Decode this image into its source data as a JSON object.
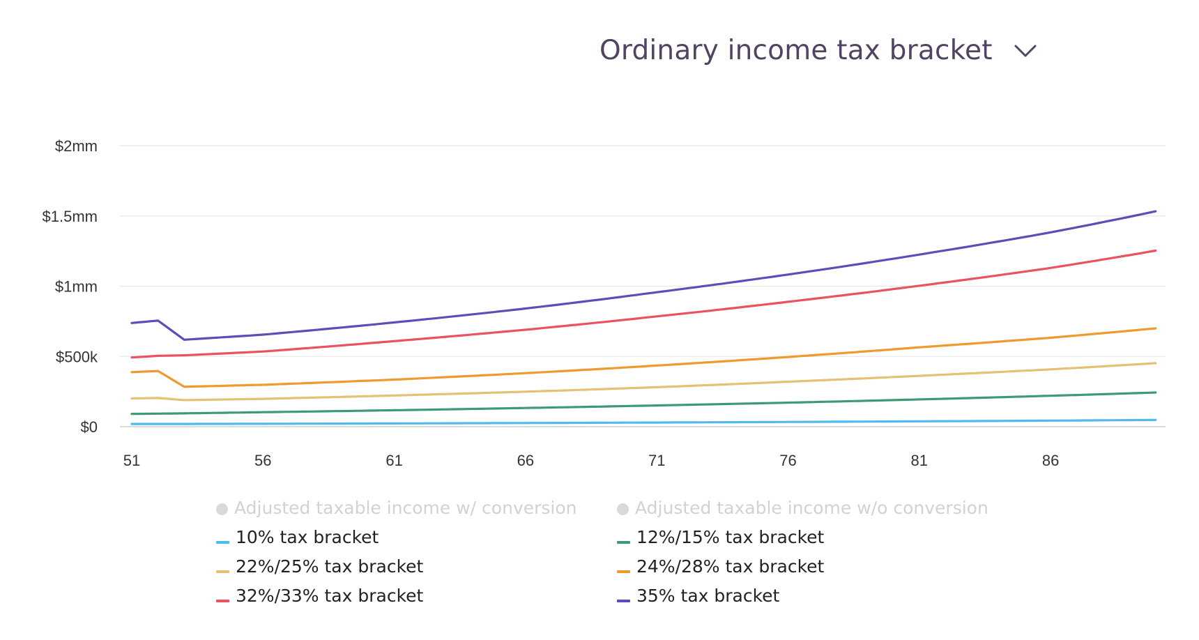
{
  "header": {
    "title": "Ordinary income tax bracket",
    "dropdown_icon": "chevron-down-icon"
  },
  "colors": {
    "grid": "#e8e8e8",
    "title": "#514460",
    "inactive_legend": "#d2d2d2"
  },
  "chart_data": {
    "type": "line",
    "title": "Ordinary income tax bracket",
    "xlabel": "",
    "ylabel": "",
    "xlim": [
      51,
      90
    ],
    "ylim": [
      0,
      2000000
    ],
    "x_ticks": [
      51,
      56,
      61,
      66,
      71,
      76,
      81,
      86
    ],
    "x_tick_labels": [
      "51",
      "56",
      "61",
      "66",
      "71",
      "76",
      "81",
      "86"
    ],
    "y_ticks": [
      0,
      500000,
      1000000,
      1500000,
      2000000
    ],
    "y_tick_labels": [
      "$0",
      "$500k",
      "$1mm",
      "$1.5mm",
      "$2mm"
    ],
    "grid": true,
    "legend_position": "bottom",
    "legend": [
      {
        "label": "Adjusted taxable income w/ conversion",
        "active": false,
        "marker": "dot"
      },
      {
        "label": "Adjusted taxable income w/o conversion",
        "active": false,
        "marker": "dot"
      },
      {
        "label": "10% tax bracket",
        "active": true,
        "marker": "dash",
        "color": "#4fb9f0"
      },
      {
        "label": "12%/15% tax bracket",
        "active": true,
        "marker": "dash",
        "color": "#3d9a73"
      },
      {
        "label": "22%/25% tax bracket",
        "active": true,
        "marker": "dash",
        "color": "#e5c173"
      },
      {
        "label": "24%/28% tax bracket",
        "active": true,
        "marker": "dash",
        "color": "#ef9a2e"
      },
      {
        "label": "32%/33% tax bracket",
        "active": true,
        "marker": "dash",
        "color": "#e9525e"
      },
      {
        "label": "35% tax bracket",
        "active": true,
        "marker": "dash",
        "color": "#5a4fb8"
      }
    ],
    "series": [
      {
        "name": "10% tax bracket",
        "color": "#4fb9f0",
        "points": [
          [
            51,
            19500
          ],
          [
            53,
            19500
          ],
          [
            56,
            20500
          ],
          [
            61,
            23000
          ],
          [
            66,
            26000
          ],
          [
            71,
            29500
          ],
          [
            76,
            33500
          ],
          [
            81,
            38000
          ],
          [
            86,
            43000
          ],
          [
            90,
            48000
          ]
        ]
      },
      {
        "name": "12%/15% tax bracket",
        "color": "#3d9a73",
        "points": [
          [
            51,
            91000
          ],
          [
            53,
            95000
          ],
          [
            56,
            103000
          ],
          [
            61,
            117000
          ],
          [
            66,
            133000
          ],
          [
            71,
            151000
          ],
          [
            76,
            171000
          ],
          [
            81,
            194000
          ],
          [
            86,
            220000
          ],
          [
            90,
            243000
          ]
        ]
      },
      {
        "name": "22%/25% tax bracket",
        "color": "#e5c173",
        "points": [
          [
            51,
            201000
          ],
          [
            52,
            204000
          ],
          [
            53,
            189000
          ],
          [
            56,
            198000
          ],
          [
            61,
            222000
          ],
          [
            66,
            249000
          ],
          [
            71,
            281000
          ],
          [
            76,
            320000
          ],
          [
            81,
            362000
          ],
          [
            86,
            408000
          ],
          [
            90,
            452000
          ]
        ]
      },
      {
        "name": "24%/28% tax bracket",
        "color": "#ef9a2e",
        "points": [
          [
            51,
            388000
          ],
          [
            52,
            396000
          ],
          [
            53,
            284000
          ],
          [
            56,
            298000
          ],
          [
            61,
            335000
          ],
          [
            66,
            381000
          ],
          [
            71,
            435000
          ],
          [
            76,
            496000
          ],
          [
            81,
            565000
          ],
          [
            86,
            633000
          ],
          [
            90,
            700000
          ]
        ]
      },
      {
        "name": "32%/33% tax bracket",
        "color": "#e9525e",
        "points": [
          [
            51,
            493000
          ],
          [
            52,
            504000
          ],
          [
            53,
            508000
          ],
          [
            56,
            535000
          ],
          [
            61,
            609000
          ],
          [
            66,
            690000
          ],
          [
            71,
            785000
          ],
          [
            76,
            889000
          ],
          [
            81,
            1003000
          ],
          [
            86,
            1130000
          ],
          [
            90,
            1253000
          ]
        ]
      },
      {
        "name": "35% tax bracket",
        "color": "#5a4fb8",
        "points": [
          [
            51,
            738000
          ],
          [
            52,
            755000
          ],
          [
            53,
            619000
          ],
          [
            56,
            655000
          ],
          [
            61,
            742000
          ],
          [
            66,
            841000
          ],
          [
            71,
            957000
          ],
          [
            76,
            1083000
          ],
          [
            81,
            1225000
          ],
          [
            86,
            1383000
          ],
          [
            90,
            1533000
          ]
        ]
      }
    ]
  }
}
